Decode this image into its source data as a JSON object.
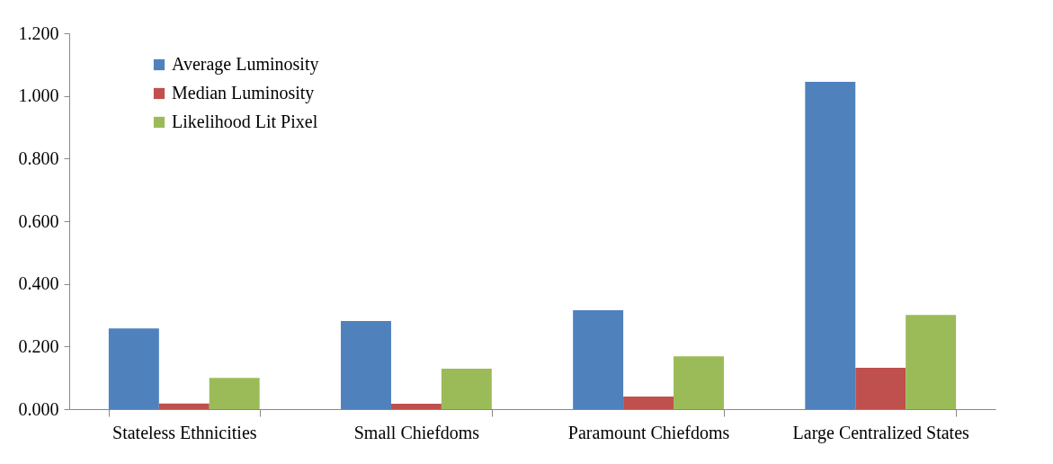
{
  "chart_data": {
    "type": "bar",
    "categories": [
      "Stateless Ethnicities",
      "Small Chiefdoms",
      "Paramount Chiefdoms",
      "Large Centralized States"
    ],
    "series": [
      {
        "name": "Average Luminosity",
        "color": "#4f81bd",
        "values": [
          0.258,
          0.281,
          0.316,
          1.045
        ]
      },
      {
        "name": "Median Luminosity",
        "color": "#c0504d",
        "values": [
          0.018,
          0.017,
          0.04,
          0.132
        ]
      },
      {
        "name": "Likelihood Lit Pixel",
        "color": "#9bbb59",
        "values": [
          0.1,
          0.129,
          0.169,
          0.301
        ]
      }
    ],
    "ylim": [
      0,
      1.2
    ],
    "yticks": [
      {
        "value": 0,
        "label": "0.000"
      },
      {
        "value": 0.2,
        "label": "0.200"
      },
      {
        "value": 0.4,
        "label": "0.400"
      },
      {
        "value": 0.6,
        "label": "0.600"
      },
      {
        "value": 0.8,
        "label": "0.800"
      },
      {
        "value": 1.0,
        "label": "1.000"
      },
      {
        "value": 1.2,
        "label": "1.200"
      }
    ],
    "grid": false,
    "legend": "top left"
  }
}
